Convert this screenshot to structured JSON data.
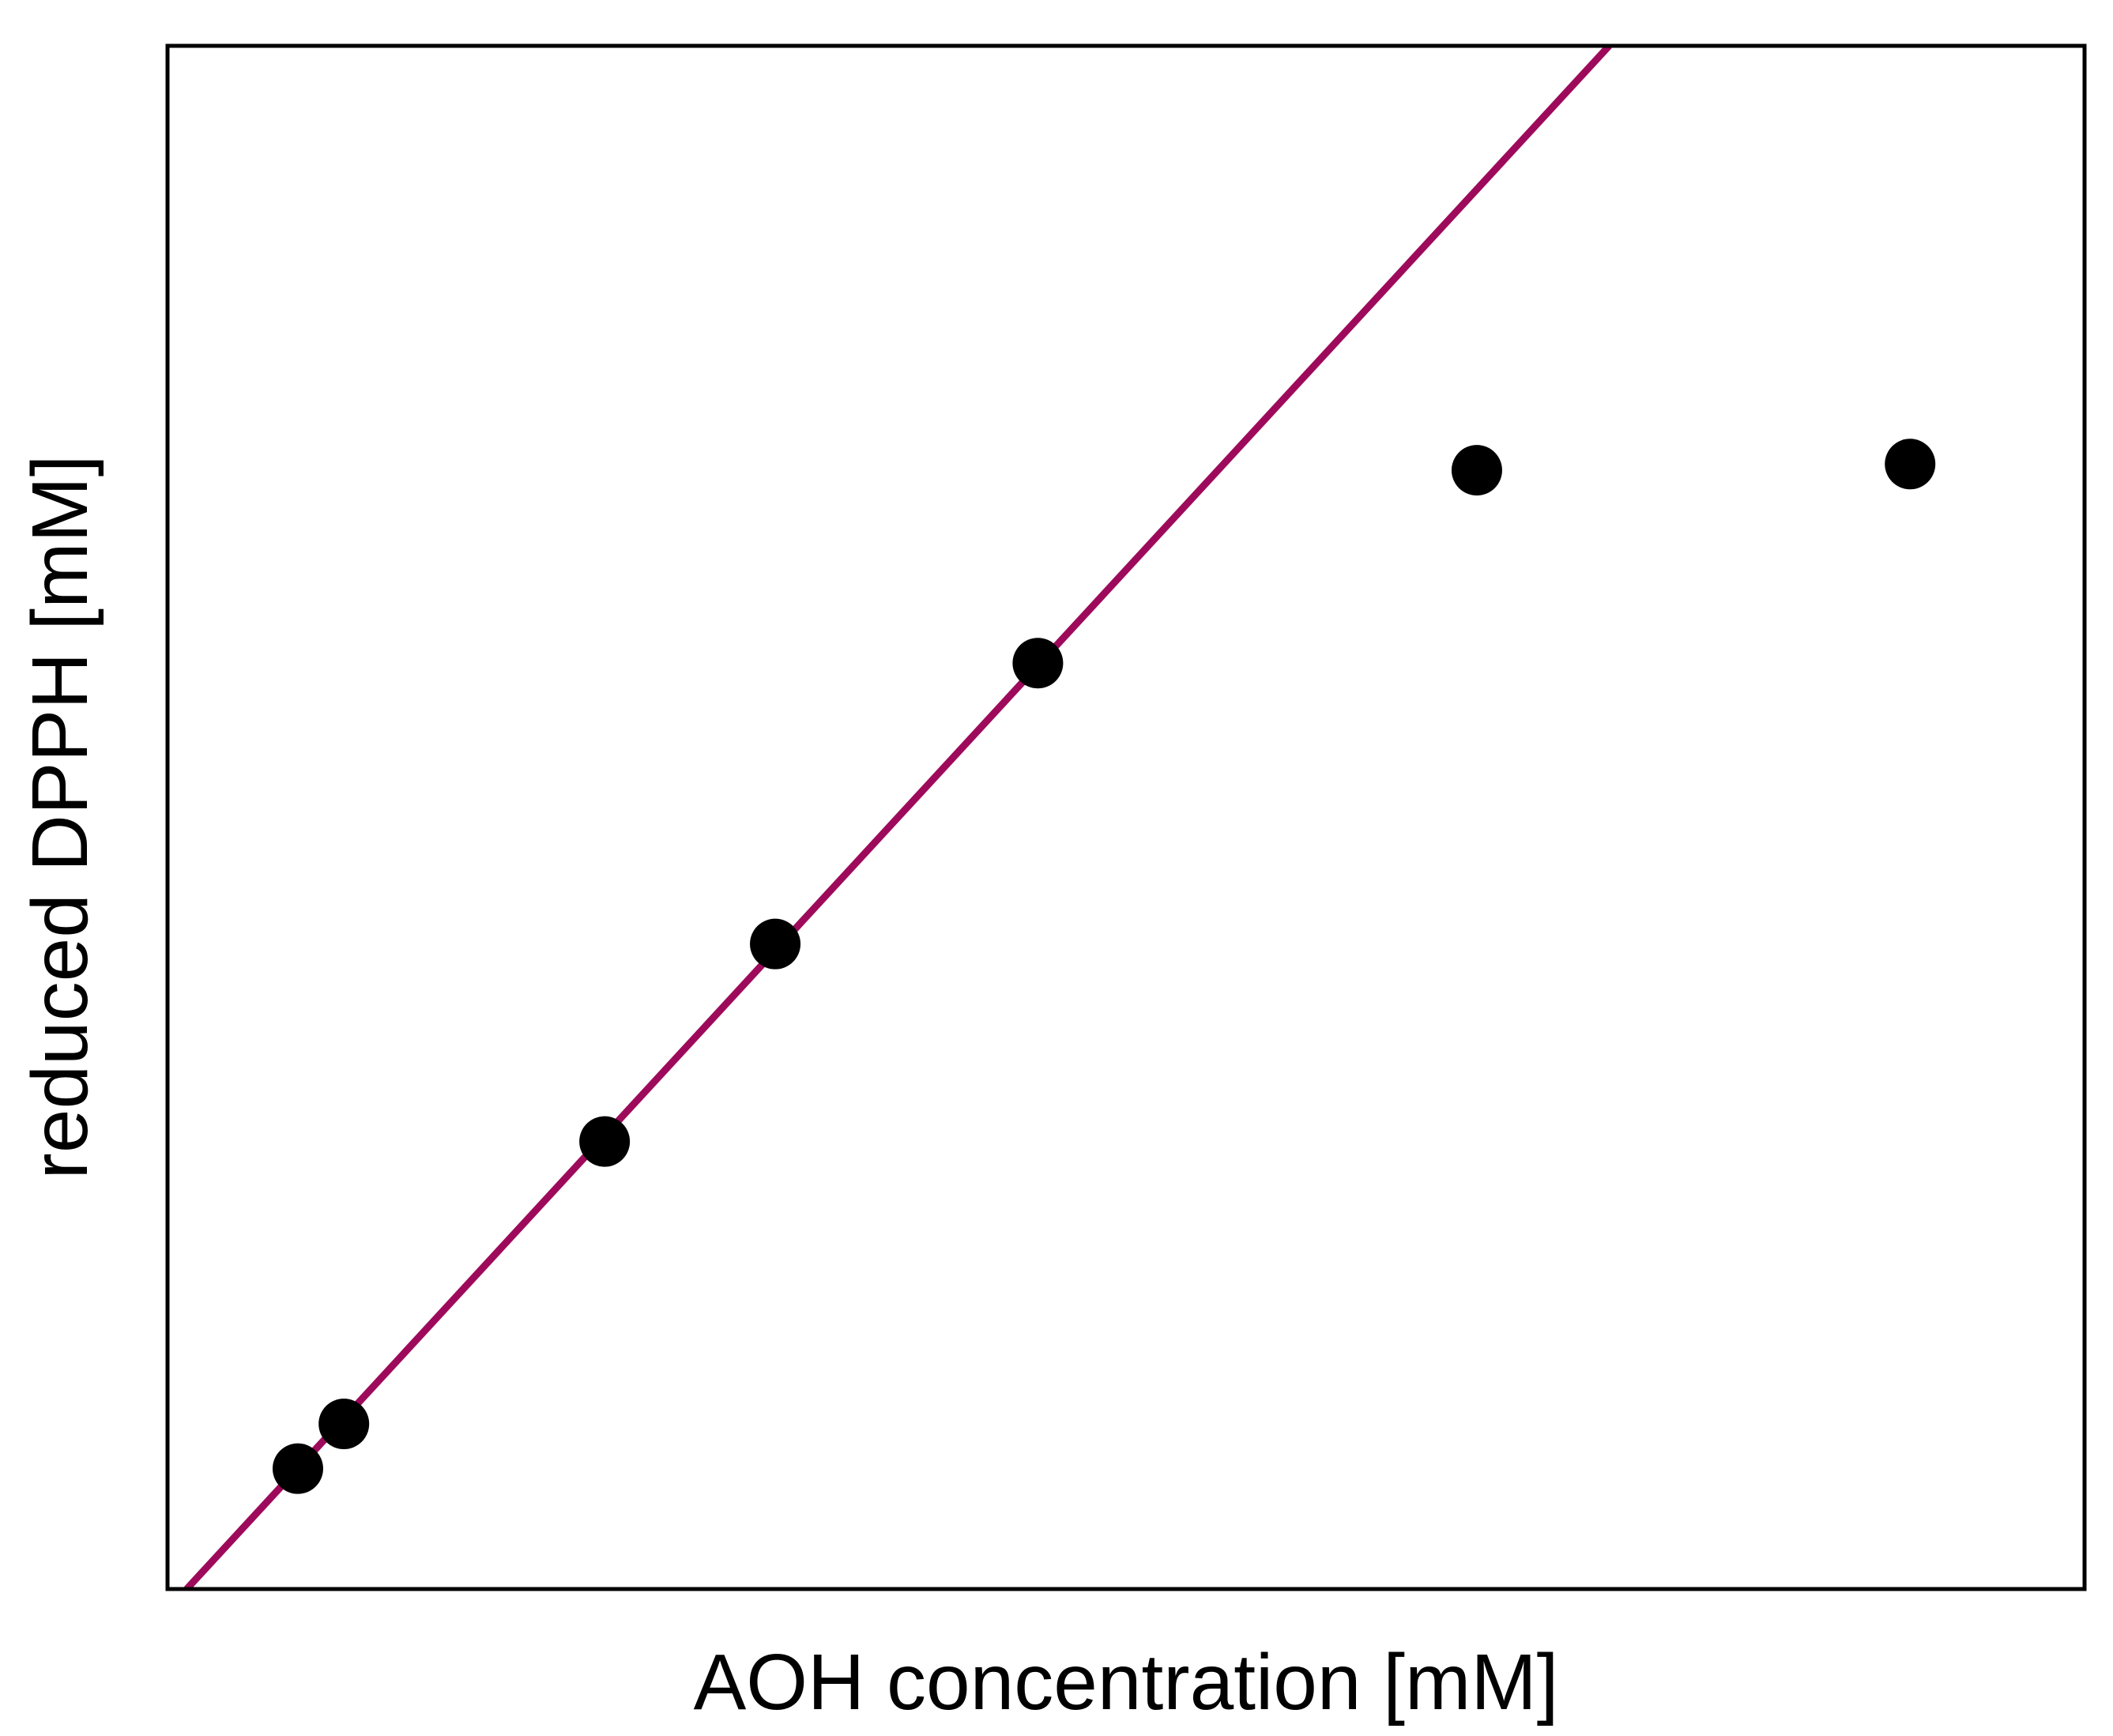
{
  "chart_data": {
    "type": "scatter",
    "xlabel": "AOH concentration [mM]",
    "ylabel": "reduced DPPH [mM]",
    "xlim": [
      0,
      10
    ],
    "ylim": [
      0,
      10
    ],
    "ticks_shown": false,
    "grid": false,
    "legend": "none",
    "colors": {
      "points": "#000000",
      "fit_line": "#9e0a5b",
      "frame": "#000000",
      "background": "#ffffff"
    },
    "series": [
      {
        "kind": "points",
        "x": [
          0.68,
          0.92,
          2.28,
          3.17,
          4.54,
          6.83,
          9.09
        ],
        "y": [
          0.78,
          1.07,
          2.9,
          4.18,
          6.0,
          7.25,
          7.29
        ]
      },
      {
        "kind": "fit-line",
        "x": [
          0.1,
          7.52
        ],
        "y": [
          0.0,
          10.0
        ]
      }
    ]
  }
}
